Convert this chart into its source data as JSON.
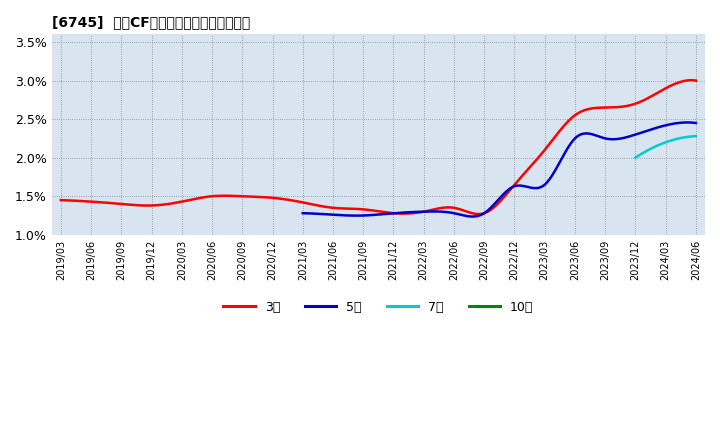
{
  "title": "[6745]  営業CFマージンの標準偏差の推移",
  "ylim": [
    0.01,
    0.036
  ],
  "yticks": [
    0.01,
    0.015,
    0.02,
    0.025,
    0.03,
    0.035
  ],
  "ytick_labels": [
    "1.0%",
    "1.5%",
    "2.0%",
    "2.5%",
    "3.0%",
    "3.5%"
  ],
  "background_color": "#d8e4f0",
  "grid_color": "#aaaaaa",
  "x_labels": [
    "2019/03",
    "2019/06",
    "2019/09",
    "2019/12",
    "2020/03",
    "2020/06",
    "2020/09",
    "2020/12",
    "2021/03",
    "2021/06",
    "2021/09",
    "2021/12",
    "2022/03",
    "2022/06",
    "2022/09",
    "2022/12",
    "2023/03",
    "2023/06",
    "2023/09",
    "2023/12",
    "2024/03",
    "2024/06"
  ],
  "series_3_xi": [
    0,
    1,
    2,
    3,
    4,
    5,
    6,
    7,
    8,
    9,
    10,
    11,
    12,
    13,
    14,
    15,
    16,
    17,
    18,
    19,
    20,
    21
  ],
  "series_3_yi": [
    0.0145,
    0.0143,
    0.014,
    0.0138,
    0.0143,
    0.015,
    0.015,
    0.0148,
    0.0142,
    0.0135,
    0.0133,
    0.0128,
    0.013,
    0.0135,
    0.0128,
    0.0165,
    0.021,
    0.0255,
    0.0265,
    0.027,
    0.029,
    0.03
  ],
  "series_5_xi": [
    8,
    9,
    10,
    11,
    12,
    13,
    14,
    15,
    16,
    17,
    18,
    19,
    20,
    21
  ],
  "series_5_yi": [
    0.0128,
    0.0126,
    0.0125,
    0.0128,
    0.013,
    0.0128,
    0.0128,
    0.0163,
    0.0165,
    0.0225,
    0.0225,
    0.023,
    0.0242,
    0.0245
  ],
  "series_7_xi": [
    19,
    20,
    21
  ],
  "series_7_yi": [
    0.02,
    0.022,
    0.0228
  ],
  "series_10_xi": [],
  "series_10_yi": [],
  "series_colors": [
    "#ff0000",
    "#0000cc",
    "#00cccc",
    "#008800"
  ],
  "legend_labels": [
    "3年",
    "5年",
    "7年",
    "10年"
  ]
}
